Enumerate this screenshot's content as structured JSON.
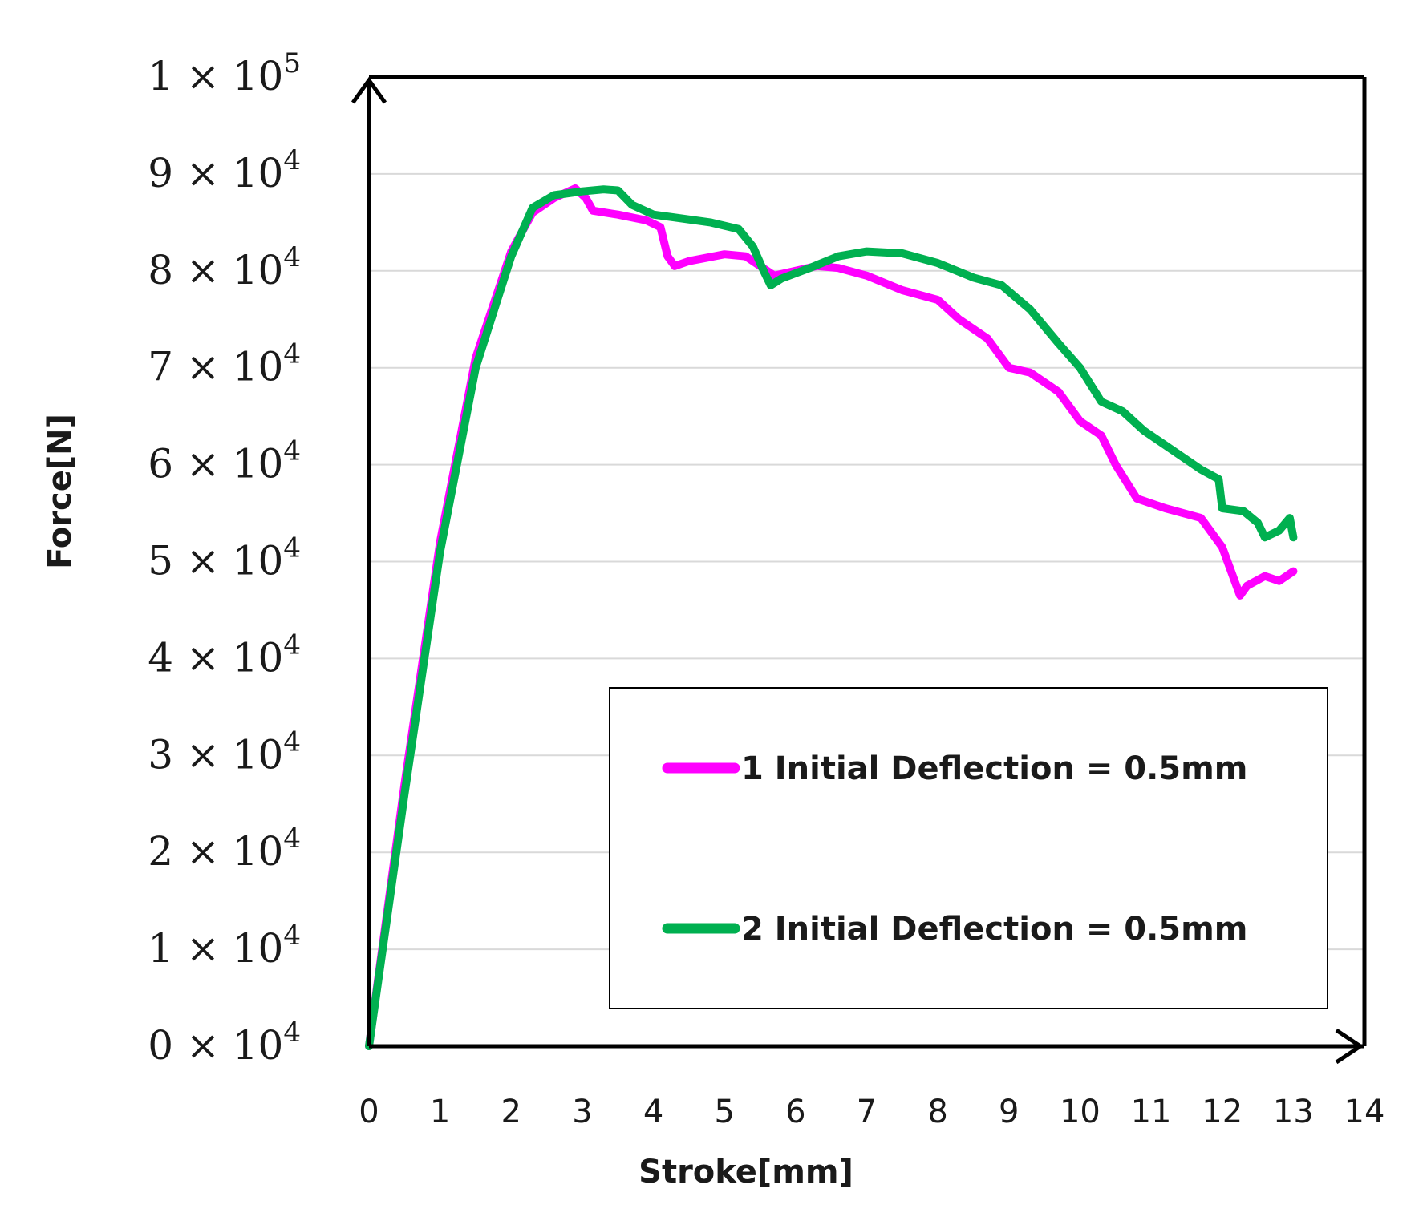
{
  "chart_data": {
    "type": "line",
    "title": "",
    "xlabel": "Stroke[mm]",
    "ylabel": "Force[N]",
    "xlim": [
      0,
      14
    ],
    "ylim": [
      0,
      100000
    ],
    "grid": true,
    "legend_position": "bottom-right",
    "x_ticks": [
      "0",
      "1",
      "2",
      "3",
      "4",
      "5",
      "6",
      "7",
      "8",
      "9",
      "10",
      "11",
      "12",
      "13",
      "14"
    ],
    "y_ticks": [
      {
        "value": 0,
        "mantissa": "0",
        "exponent": "4"
      },
      {
        "value": 10000,
        "mantissa": "1",
        "exponent": "4"
      },
      {
        "value": 20000,
        "mantissa": "2",
        "exponent": "4"
      },
      {
        "value": 30000,
        "mantissa": "3",
        "exponent": "4"
      },
      {
        "value": 40000,
        "mantissa": "4",
        "exponent": "4"
      },
      {
        "value": 50000,
        "mantissa": "5",
        "exponent": "4"
      },
      {
        "value": 60000,
        "mantissa": "6",
        "exponent": "4"
      },
      {
        "value": 70000,
        "mantissa": "7",
        "exponent": "4"
      },
      {
        "value": 80000,
        "mantissa": "8",
        "exponent": "4"
      },
      {
        "value": 90000,
        "mantissa": "9",
        "exponent": "4"
      },
      {
        "value": 100000,
        "mantissa": "1",
        "exponent": "5"
      }
    ],
    "y_tick_times": "×",
    "y_tick_base": "10",
    "series": [
      {
        "name": "1 Initial Deflection = 0.5mm",
        "color": "#ff00ff",
        "points": [
          [
            0,
            0
          ],
          [
            0.5,
            27000
          ],
          [
            1,
            52000
          ],
          [
            1.5,
            71000
          ],
          [
            2,
            82000
          ],
          [
            2.3,
            86000
          ],
          [
            2.6,
            87500
          ],
          [
            2.9,
            88500
          ],
          [
            3.05,
            87500
          ],
          [
            3.15,
            86200
          ],
          [
            3.5,
            85800
          ],
          [
            3.9,
            85200
          ],
          [
            4.1,
            84500
          ],
          [
            4.2,
            81500
          ],
          [
            4.3,
            80500
          ],
          [
            4.5,
            81000
          ],
          [
            5,
            81700
          ],
          [
            5.3,
            81500
          ],
          [
            5.5,
            80500
          ],
          [
            5.7,
            79500
          ],
          [
            6.0,
            80000
          ],
          [
            6.3,
            80500
          ],
          [
            6.6,
            80300
          ],
          [
            7,
            79500
          ],
          [
            7.5,
            78000
          ],
          [
            8,
            77000
          ],
          [
            8.3,
            75000
          ],
          [
            8.7,
            73000
          ],
          [
            9,
            70000
          ],
          [
            9.3,
            69500
          ],
          [
            9.7,
            67500
          ],
          [
            10,
            64500
          ],
          [
            10.3,
            63000
          ],
          [
            10.5,
            60000
          ],
          [
            10.8,
            56500
          ],
          [
            11.2,
            55500
          ],
          [
            11.7,
            54500
          ],
          [
            12.0,
            51500
          ],
          [
            12.15,
            48500
          ],
          [
            12.25,
            46500
          ],
          [
            12.35,
            47500
          ],
          [
            12.6,
            48500
          ],
          [
            12.8,
            48000
          ],
          [
            13.0,
            49000
          ]
        ]
      },
      {
        "name": "2 Initial Deflection = 0.5mm",
        "color": "#00b050",
        "points": [
          [
            0,
            0
          ],
          [
            0.5,
            26000
          ],
          [
            1,
            51000
          ],
          [
            1.5,
            70000
          ],
          [
            2,
            81500
          ],
          [
            2.3,
            86500
          ],
          [
            2.6,
            87800
          ],
          [
            3,
            88200
          ],
          [
            3.3,
            88400
          ],
          [
            3.5,
            88300
          ],
          [
            3.7,
            86800
          ],
          [
            4,
            85800
          ],
          [
            4.3,
            85500
          ],
          [
            4.8,
            85000
          ],
          [
            5.2,
            84300
          ],
          [
            5.4,
            82500
          ],
          [
            5.55,
            80000
          ],
          [
            5.65,
            78500
          ],
          [
            5.8,
            79200
          ],
          [
            6.2,
            80300
          ],
          [
            6.6,
            81500
          ],
          [
            7,
            82000
          ],
          [
            7.5,
            81800
          ],
          [
            8,
            80800
          ],
          [
            8.5,
            79300
          ],
          [
            8.9,
            78500
          ],
          [
            9.3,
            76000
          ],
          [
            9.7,
            72500
          ],
          [
            10,
            70000
          ],
          [
            10.3,
            66500
          ],
          [
            10.6,
            65500
          ],
          [
            10.9,
            63500
          ],
          [
            11.2,
            62000
          ],
          [
            11.7,
            59500
          ],
          [
            11.95,
            58500
          ],
          [
            12.0,
            55500
          ],
          [
            12.3,
            55200
          ],
          [
            12.5,
            54000
          ],
          [
            12.6,
            52500
          ],
          [
            12.8,
            53200
          ],
          [
            12.95,
            54500
          ],
          [
            13.0,
            52500
          ]
        ]
      }
    ]
  }
}
